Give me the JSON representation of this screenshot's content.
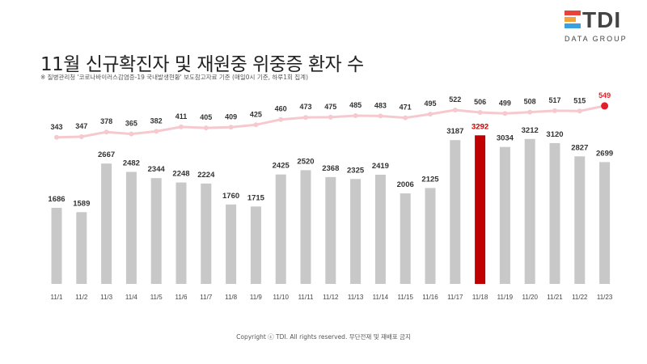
{
  "header": {
    "title": "11월 신규확진자 및 재원중 위중증 환자 수",
    "source": "※ 질병관리청 '코로나바이러스감염증-19 국내발생현황' 보도참고자료 기준 (매일0시 기준, 하루1회 집계)"
  },
  "logo": {
    "text": "TDI",
    "subtext": "DATA GROUP",
    "bar_colors": [
      "#e8423a",
      "#f2a33a",
      "#3aa0e0"
    ]
  },
  "footer": {
    "copyright": "Copyright ⓒ TDI. All rights reserved. 무단전재 및 재배포 금지"
  },
  "colors": {
    "bar": "#c8c8c8",
    "bar_highlight": "#c00000",
    "line": "#f6c9cf",
    "line_point": "#f6c9cf",
    "line_highlight": "#e0202a"
  },
  "chart_data": {
    "type": "bar",
    "categories": [
      "11/1",
      "11/2",
      "11/3",
      "11/4",
      "11/5",
      "11/6",
      "11/7",
      "11/8",
      "11/9",
      "11/10",
      "11/11",
      "11/12",
      "11/13",
      "11/14",
      "11/15",
      "11/16",
      "11/17",
      "11/18",
      "11/19",
      "11/20",
      "11/21",
      "11/22",
      "11/23"
    ],
    "series": [
      {
        "type": "bar",
        "values": [
          1686,
          1589,
          2667,
          2482,
          2344,
          2248,
          2224,
          1760,
          1715,
          2425,
          2520,
          2368,
          2325,
          2419,
          2006,
          2125,
          3187,
          3292,
          3034,
          3212,
          3120,
          2827,
          2699
        ],
        "highlight_index": 17
      },
      {
        "type": "line",
        "values": [
          343,
          347,
          378,
          365,
          382,
          411,
          405,
          409,
          425,
          460,
          473,
          475,
          485,
          483,
          471,
          495,
          522,
          506,
          499,
          508,
          517,
          515,
          549
        ],
        "highlight_index": 22
      }
    ],
    "grid": false,
    "legend": "none"
  }
}
